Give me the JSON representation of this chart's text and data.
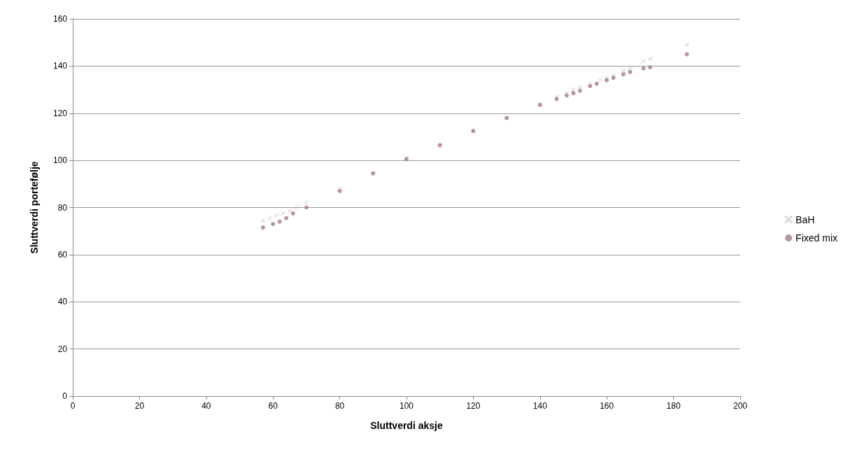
{
  "chart_data": {
    "type": "scatter",
    "xlabel": "Sluttverdi aksje",
    "ylabel": "Sluttverdi portefølje",
    "xlim": [
      0,
      200
    ],
    "xticks": [
      0,
      20,
      40,
      60,
      80,
      100,
      120,
      140,
      160,
      180,
      200
    ],
    "ylim": [
      0,
      160
    ],
    "yticks": [
      0,
      20,
      40,
      60,
      80,
      100,
      120,
      140,
      160
    ],
    "grid": "y",
    "legend": "right",
    "series": [
      {
        "name": "BaH",
        "color": "#c4c4bc",
        "marker": "cross",
        "x": [
          57,
          59,
          61,
          63,
          65,
          67,
          70,
          80,
          90,
          100,
          110,
          120,
          130,
          140,
          145,
          148,
          150,
          152,
          155,
          158,
          160,
          162,
          165,
          167,
          171,
          173,
          184
        ],
        "values": [
          74.5,
          75.5,
          76.5,
          77.5,
          78.5,
          80,
          82,
          88,
          94.5,
          101,
          106,
          112,
          118,
          124,
          127,
          128.5,
          130,
          131,
          132.5,
          134,
          135,
          136,
          138,
          139,
          142,
          143,
          149
        ]
      },
      {
        "name": "Fixed mix",
        "color": "#a67c82",
        "marker": "circle",
        "x": [
          57,
          60,
          62,
          64,
          66,
          70,
          80,
          90,
          100,
          110,
          120,
          130,
          140,
          145,
          148,
          150,
          152,
          155,
          157,
          160,
          162,
          165,
          167,
          171,
          173,
          184
        ],
        "values": [
          71.5,
          73,
          74,
          75.5,
          77.5,
          80,
          87,
          94.5,
          100.5,
          106.5,
          112.5,
          118,
          123.5,
          126,
          127.5,
          128.5,
          129.5,
          131.5,
          132.5,
          134,
          135,
          136.5,
          137.5,
          139,
          139.5,
          145
        ]
      }
    ]
  }
}
